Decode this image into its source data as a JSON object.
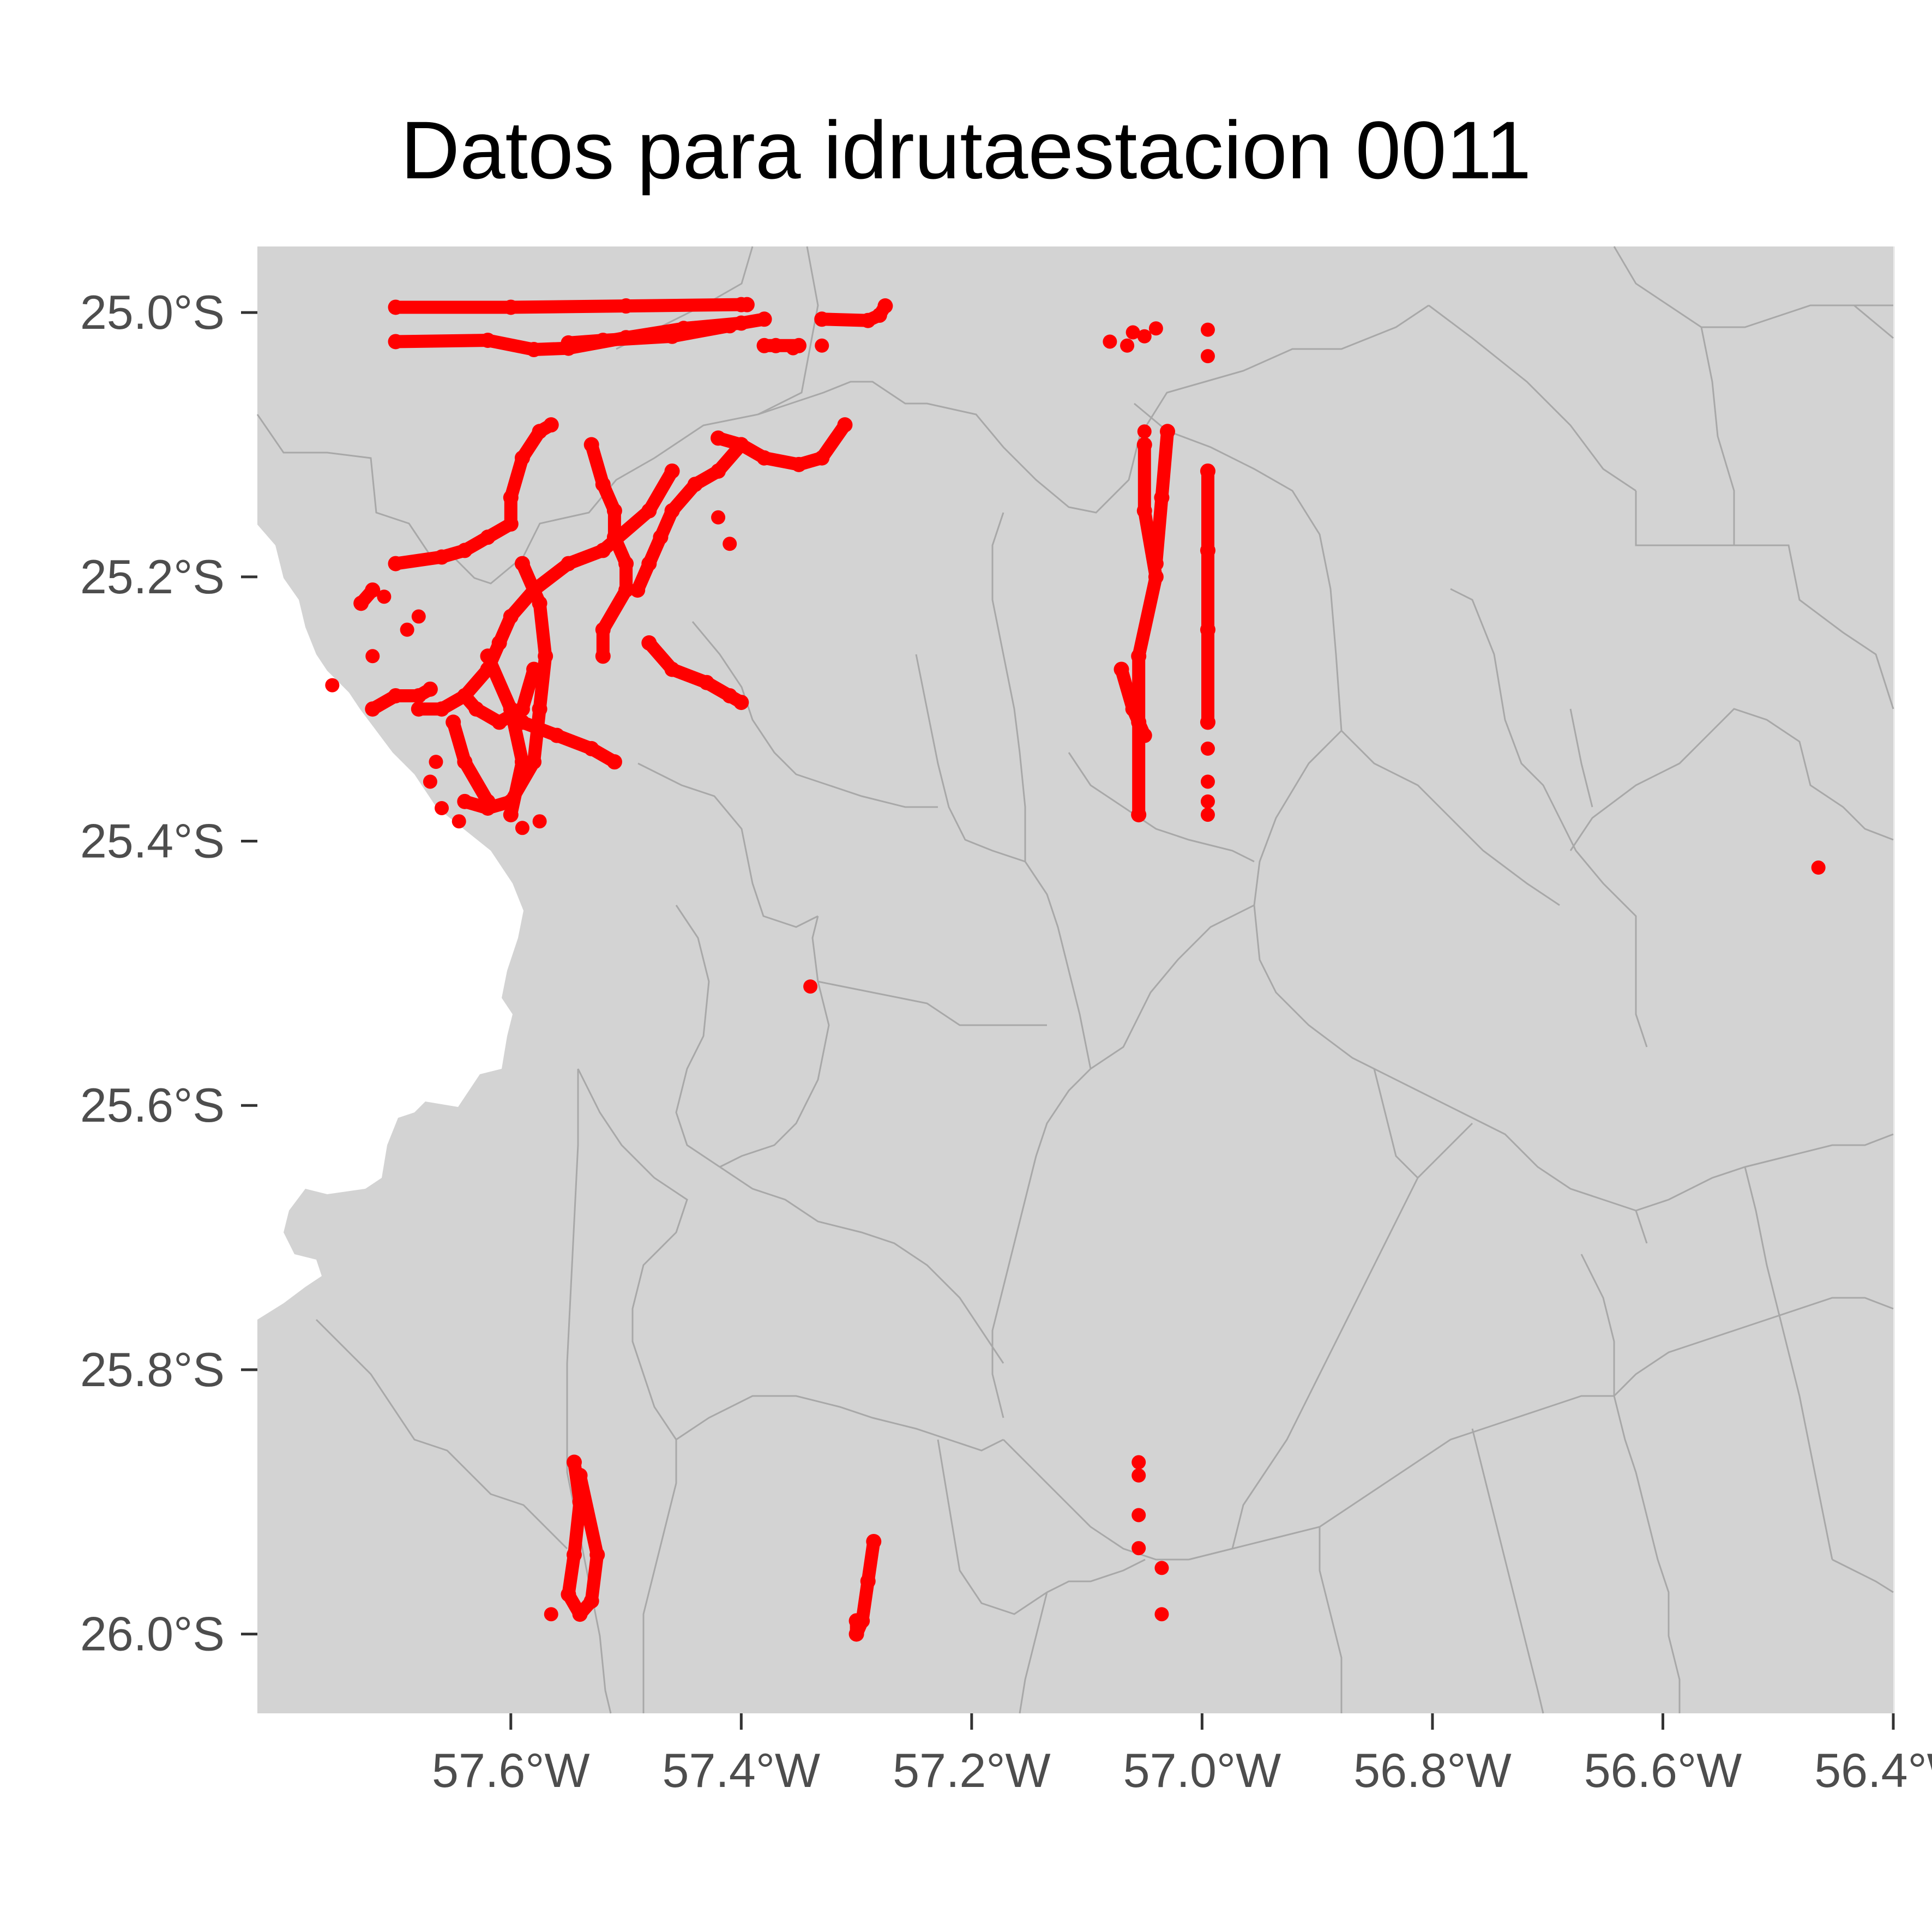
{
  "title": "Datos para idrutaestacion 0011",
  "chart_data": {
    "type": "scatter",
    "title": "Datos para idrutaestacion 0011",
    "xlabel": "",
    "ylabel": "",
    "xlim": [
      -57.82,
      -56.4
    ],
    "ylim": [
      -26.06,
      -24.95
    ],
    "x_ticks": [
      {
        "value": -57.6,
        "label": "57.6°W"
      },
      {
        "value": -57.4,
        "label": "57.4°W"
      },
      {
        "value": -57.2,
        "label": "57.2°W"
      },
      {
        "value": -57.0,
        "label": "57.0°W"
      },
      {
        "value": -56.8,
        "label": "56.8°W"
      },
      {
        "value": -56.6,
        "label": "56.6°W"
      },
      {
        "value": -56.4,
        "label": "56.4°W"
      }
    ],
    "y_ticks": [
      {
        "value": -25.0,
        "label": "25.0°S"
      },
      {
        "value": -25.2,
        "label": "25.2°S"
      },
      {
        "value": -25.4,
        "label": "25.4°S"
      },
      {
        "value": -25.6,
        "label": "25.6°S"
      },
      {
        "value": -25.8,
        "label": "25.8°S"
      },
      {
        "value": -26.0,
        "label": "26.0°S"
      }
    ],
    "grid": true,
    "colors": {
      "points": "#ff0000",
      "land": "#d3d3d3",
      "boundaries": "#a8a8a8",
      "background": "#ffffff",
      "grid": "#ebebeb",
      "tick_labels": "#4d4d4d"
    },
    "tracks": [
      {
        "name": "t01",
        "points": [
          [
            -57.7,
            -24.996
          ],
          [
            -57.6,
            -24.996
          ],
          [
            -57.5,
            -24.995
          ],
          [
            -57.4,
            -24.994
          ],
          [
            -57.395,
            -24.994
          ]
        ]
      },
      {
        "name": "t02",
        "points": [
          [
            -57.7,
            -25.022
          ],
          [
            -57.62,
            -25.021
          ],
          [
            -57.58,
            -25.028
          ],
          [
            -57.55,
            -25.027
          ],
          [
            -57.5,
            -25.019
          ],
          [
            -57.45,
            -25.012
          ],
          [
            -57.4,
            -25.008
          ],
          [
            -57.38,
            -25.005
          ]
        ]
      },
      {
        "name": "t03",
        "points": [
          [
            -57.41,
            -25.01
          ],
          [
            -57.46,
            -25.018
          ],
          [
            -57.52,
            -25.021
          ],
          [
            -57.55,
            -25.023
          ]
        ]
      },
      {
        "name": "t04",
        "points": [
          [
            -57.38,
            -25.025
          ],
          [
            -57.37,
            -25.025
          ],
          [
            -57.35,
            -25.025
          ]
        ]
      },
      {
        "name": "t05",
        "points": [
          [
            -57.33,
            -25.005
          ],
          [
            -57.29,
            -25.006
          ],
          [
            -57.28,
            -25.002
          ],
          [
            -57.275,
            -24.995
          ]
        ]
      },
      {
        "name": "t06",
        "points": [
          [
            -57.565,
            -25.085
          ],
          [
            -57.575,
            -25.09
          ],
          [
            -57.59,
            -25.11
          ],
          [
            -57.6,
            -25.14
          ],
          [
            -57.6,
            -25.16
          ],
          [
            -57.62,
            -25.17
          ],
          [
            -57.64,
            -25.18
          ],
          [
            -57.66,
            -25.185
          ],
          [
            -57.7,
            -25.19
          ]
        ]
      },
      {
        "name": "t07",
        "points": [
          [
            -57.72,
            -25.21
          ],
          [
            -57.73,
            -25.22
          ]
        ]
      },
      {
        "name": "t08",
        "points": [
          [
            -57.53,
            -25.1
          ],
          [
            -57.52,
            -25.13
          ],
          [
            -57.51,
            -25.15
          ],
          [
            -57.51,
            -25.17
          ],
          [
            -57.5,
            -25.19
          ],
          [
            -57.5,
            -25.21
          ],
          [
            -57.52,
            -25.24
          ],
          [
            -57.52,
            -25.26
          ]
        ]
      },
      {
        "name": "t09",
        "points": [
          [
            -57.46,
            -25.12
          ],
          [
            -57.48,
            -25.15
          ],
          [
            -57.52,
            -25.18
          ],
          [
            -57.55,
            -25.19
          ],
          [
            -57.58,
            -25.21
          ],
          [
            -57.6,
            -25.23
          ],
          [
            -57.61,
            -25.25
          ],
          [
            -57.62,
            -25.27
          ],
          [
            -57.64,
            -25.29
          ],
          [
            -57.66,
            -25.3
          ],
          [
            -57.68,
            -25.3
          ]
        ]
      },
      {
        "name": "t10",
        "points": [
          [
            -57.4,
            -25.1
          ],
          [
            -57.42,
            -25.12
          ],
          [
            -57.44,
            -25.13
          ],
          [
            -57.46,
            -25.15
          ],
          [
            -57.47,
            -25.17
          ],
          [
            -57.48,
            -25.19
          ],
          [
            -57.49,
            -25.21
          ]
        ]
      },
      {
        "name": "t11",
        "points": [
          [
            -57.59,
            -25.19
          ],
          [
            -57.575,
            -25.22
          ],
          [
            -57.57,
            -25.26
          ],
          [
            -57.575,
            -25.3
          ],
          [
            -57.58,
            -25.34
          ],
          [
            -57.6,
            -25.37
          ],
          [
            -57.62,
            -25.375
          ],
          [
            -57.64,
            -25.37
          ]
        ]
      },
      {
        "name": "t12",
        "points": [
          [
            -57.62,
            -25.26
          ],
          [
            -57.6,
            -25.3
          ],
          [
            -57.59,
            -25.34
          ],
          [
            -57.6,
            -25.38
          ]
        ]
      },
      {
        "name": "t13",
        "points": [
          [
            -57.58,
            -25.27
          ],
          [
            -57.59,
            -25.3
          ],
          [
            -57.61,
            -25.31
          ],
          [
            -57.63,
            -25.3
          ],
          [
            -57.64,
            -25.29
          ]
        ]
      },
      {
        "name": "t14",
        "points": [
          [
            -57.65,
            -25.31
          ],
          [
            -57.64,
            -25.34
          ],
          [
            -57.62,
            -25.37
          ]
        ]
      },
      {
        "name": "t15",
        "points": [
          [
            -57.48,
            -25.25
          ],
          [
            -57.46,
            -25.27
          ],
          [
            -57.43,
            -25.28
          ],
          [
            -57.41,
            -25.29
          ],
          [
            -57.4,
            -25.295
          ]
        ]
      },
      {
        "name": "t16",
        "points": [
          [
            -57.59,
            -25.31
          ],
          [
            -57.56,
            -25.32
          ],
          [
            -57.53,
            -25.33
          ],
          [
            -57.51,
            -25.34
          ]
        ]
      },
      {
        "name": "t17",
        "points": [
          [
            -57.31,
            -25.085
          ],
          [
            -57.33,
            -25.11
          ],
          [
            -57.35,
            -25.115
          ],
          [
            -57.38,
            -25.11
          ],
          [
            -57.4,
            -25.1
          ],
          [
            -57.42,
            -25.095
          ]
        ]
      },
      {
        "name": "t18",
        "points": [
          [
            -57.72,
            -25.3
          ],
          [
            -57.7,
            -25.29
          ],
          [
            -57.68,
            -25.29
          ],
          [
            -57.67,
            -25.285
          ]
        ]
      },
      {
        "name": "t19",
        "points": [
          [
            -57.05,
            -25.1
          ],
          [
            -57.05,
            -25.15
          ],
          [
            -57.04,
            -25.2
          ],
          [
            -57.055,
            -25.26
          ],
          [
            -57.055,
            -25.31
          ],
          [
            -57.055,
            -25.38
          ]
        ]
      },
      {
        "name": "t20",
        "points": [
          [
            -57.07,
            -25.27
          ],
          [
            -57.06,
            -25.3
          ],
          [
            -57.05,
            -25.32
          ]
        ]
      },
      {
        "name": "t21",
        "points": [
          [
            -57.03,
            -25.09
          ],
          [
            -57.035,
            -25.14
          ],
          [
            -57.04,
            -25.19
          ]
        ]
      },
      {
        "name": "t22",
        "points": [
          [
            -56.995,
            -25.12
          ],
          [
            -56.995,
            -25.18
          ],
          [
            -56.995,
            -25.24
          ],
          [
            -56.995,
            -25.31
          ]
        ]
      },
      {
        "name": "t23",
        "points": [
          [
            -57.545,
            -25.87
          ],
          [
            -57.54,
            -25.9
          ],
          [
            -57.545,
            -25.94
          ],
          [
            -57.55,
            -25.97
          ],
          [
            -57.54,
            -25.985
          ],
          [
            -57.53,
            -25.975
          ],
          [
            -57.525,
            -25.94
          ],
          [
            -57.54,
            -25.88
          ]
        ]
      },
      {
        "name": "t24",
        "points": [
          [
            -57.285,
            -25.93
          ],
          [
            -57.29,
            -25.96
          ],
          [
            -57.295,
            -25.99
          ],
          [
            -57.3,
            -26.0
          ],
          [
            -57.3,
            -25.99
          ]
        ]
      }
    ],
    "points": [
      [
        -57.355,
        -25.027
      ],
      [
        -57.33,
        -25.025
      ],
      [
        -57.06,
        -25.015
      ],
      [
        -57.05,
        -25.018
      ],
      [
        -57.065,
        -25.025
      ],
      [
        -57.08,
        -25.022
      ],
      [
        -57.04,
        -25.012
      ],
      [
        -56.995,
        -25.013
      ],
      [
        -56.995,
        -25.033
      ],
      [
        -57.05,
        -25.09
      ],
      [
        -57.71,
        -25.215
      ],
      [
        -57.69,
        -25.24
      ],
      [
        -57.72,
        -25.26
      ],
      [
        -57.755,
        -25.282
      ],
      [
        -57.68,
        -25.23
      ],
      [
        -57.42,
        -25.155
      ],
      [
        -57.41,
        -25.175
      ],
      [
        -57.665,
        -25.34
      ],
      [
        -57.67,
        -25.355
      ],
      [
        -57.66,
        -25.375
      ],
      [
        -57.645,
        -25.385
      ],
      [
        -57.575,
        -25.385
      ],
      [
        -57.59,
        -25.39
      ],
      [
        -56.995,
        -25.33
      ],
      [
        -56.995,
        -25.355
      ],
      [
        -56.995,
        -25.37
      ],
      [
        -56.995,
        -25.38
      ],
      [
        -56.465,
        -25.42
      ],
      [
        -57.34,
        -25.51
      ],
      [
        -57.055,
        -25.87
      ],
      [
        -57.055,
        -25.88
      ],
      [
        -57.055,
        -25.91
      ],
      [
        -57.055,
        -25.935
      ],
      [
        -57.035,
        -25.95
      ],
      [
        -57.035,
        -25.985
      ],
      [
        -57.565,
        -25.985
      ]
    ]
  }
}
